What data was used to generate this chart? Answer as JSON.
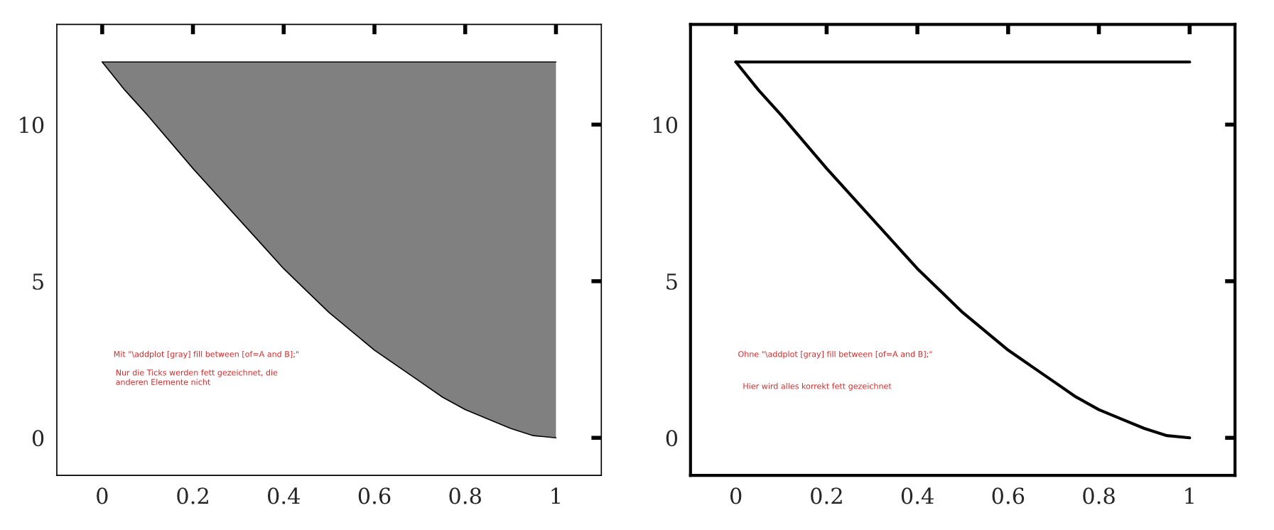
{
  "chart_data": [
    {
      "type": "line",
      "x": [
        0,
        0.05,
        0.1,
        0.15,
        0.2,
        0.25,
        0.3,
        0.35,
        0.4,
        0.45,
        0.5,
        0.55,
        0.6,
        0.65,
        0.7,
        0.75,
        0.8,
        0.85,
        0.9,
        0.95,
        1
      ],
      "series": [
        {
          "color": "#000000",
          "values": [
            12,
            11.1,
            10.3,
            9.45,
            8.6,
            7.8,
            7.0,
            6.2,
            5.4,
            4.7,
            4.0,
            3.4,
            2.8,
            2.3,
            1.8,
            1.3,
            0.9,
            0.6,
            0.3,
            0.07,
            0
          ],
          "lower": [
            12,
            11.1,
            10.3,
            9.45,
            8.6,
            7.8,
            7.0,
            6.2,
            5.4,
            4.7,
            4.0,
            3.4,
            2.8,
            2.3,
            1.8,
            1.3,
            0.9,
            0.6,
            0.3,
            0.07,
            0
          ],
          "upper": [
            12,
            12,
            12,
            12,
            12,
            12,
            12,
            12,
            12,
            12,
            12,
            12,
            12,
            12,
            12,
            12,
            12,
            12,
            12,
            12,
            12
          ]
        },
        {
          "color": "#000000",
          "values": [
            12,
            12,
            12,
            12,
            12,
            12,
            12,
            12,
            12,
            12,
            12,
            12,
            12,
            12,
            12,
            12,
            12,
            12,
            12,
            12,
            12
          ]
        }
      ],
      "xlim": [
        -0.1,
        1.1
      ],
      "ylim": [
        -1.2,
        13.2
      ],
      "xticks": [
        0,
        0.2,
        0.4,
        0.6,
        0.8,
        1
      ],
      "yticks": [
        0,
        5,
        10
      ],
      "annotations": [
        "Mit \"\\addplot [gray] fill between [of=A and B];\"",
        "Nur die Ticks werden fett gezeichnet, die\nanderen Elemente nicht"
      ]
    },
    {
      "type": "line",
      "x": [
        0,
        0.05,
        0.1,
        0.15,
        0.2,
        0.25,
        0.3,
        0.35,
        0.4,
        0.45,
        0.5,
        0.55,
        0.6,
        0.65,
        0.7,
        0.75,
        0.8,
        0.85,
        0.9,
        0.95,
        1
      ],
      "series": [
        {
          "color": "#000000",
          "values": [
            12,
            11.1,
            10.3,
            9.45,
            8.6,
            7.8,
            7.0,
            6.2,
            5.4,
            4.7,
            4.0,
            3.4,
            2.8,
            2.3,
            1.8,
            1.3,
            0.9,
            0.6,
            0.3,
            0.07,
            0
          ]
        },
        {
          "color": "#000000",
          "values": [
            12,
            12,
            12,
            12,
            12,
            12,
            12,
            12,
            12,
            12,
            12,
            12,
            12,
            12,
            12,
            12,
            12,
            12,
            12,
            12,
            12
          ]
        }
      ],
      "xlim": [
        -0.1,
        1.1
      ],
      "ylim": [
        -1.2,
        13.2
      ],
      "xticks": [
        0,
        0.2,
        0.4,
        0.6,
        0.8,
        1
      ],
      "yticks": [
        0,
        5,
        10
      ],
      "annotations": [
        "Ohne \"\\addplot [gray] fill between [of=A and B];\"",
        "Hier wird alles korrekt fett gezeichnet"
      ]
    }
  ]
}
